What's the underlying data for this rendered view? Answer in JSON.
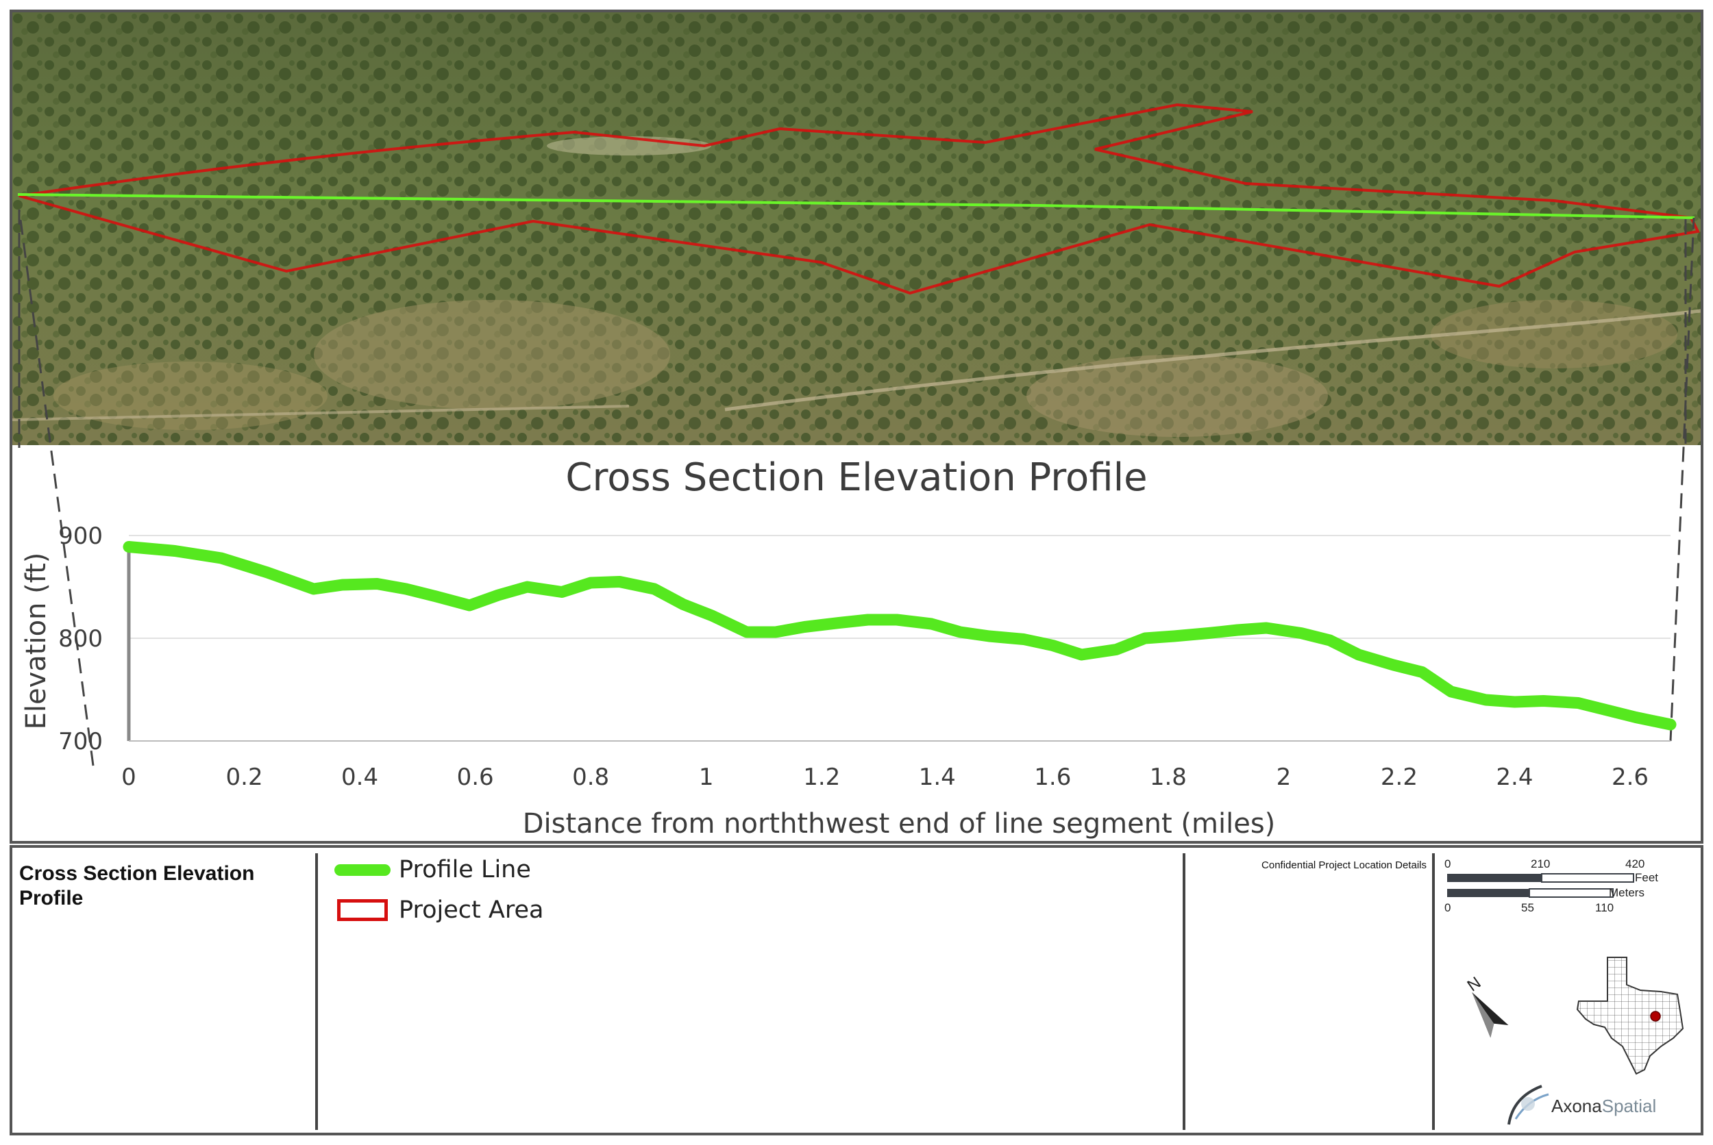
{
  "chart_data": {
    "type": "line",
    "title": "Cross Section Elevation Profile",
    "xlabel": "Distance from norththwest end of line segment (miles)",
    "ylabel": "Elevation (ft)",
    "xlim": [
      0,
      2.67
    ],
    "ylim": [
      700,
      900
    ],
    "xticks": [
      "0",
      "0.2",
      "0.4",
      "0.6",
      "0.8",
      "1",
      "1.2",
      "1.4",
      "1.6",
      "1.8",
      "2",
      "2.2",
      "2.4",
      "2.6"
    ],
    "yticks": [
      "700",
      "800",
      "900"
    ],
    "grid": "horizontal",
    "series": [
      {
        "name": "Profile Line",
        "x": [
          0,
          0.08,
          0.16,
          0.24,
          0.32,
          0.37,
          0.43,
          0.48,
          0.53,
          0.59,
          0.64,
          0.69,
          0.75,
          0.8,
          0.85,
          0.91,
          0.96,
          1.01,
          1.07,
          1.12,
          1.17,
          1.23,
          1.28,
          1.33,
          1.39,
          1.44,
          1.49,
          1.55,
          1.6,
          1.65,
          1.71,
          1.76,
          1.81,
          1.87,
          1.92,
          1.97,
          2.03,
          2.08,
          2.13,
          2.19,
          2.24,
          2.29,
          2.35,
          2.4,
          2.45,
          2.51,
          2.56,
          2.61,
          2.67
        ],
        "y": [
          889,
          885,
          878,
          864,
          848,
          852,
          853,
          848,
          841,
          832,
          842,
          850,
          845,
          854,
          855,
          848,
          833,
          822,
          806,
          806,
          811,
          815,
          818,
          818,
          814,
          806,
          802,
          799,
          793,
          784,
          789,
          800,
          802,
          805,
          808,
          810,
          805,
          798,
          784,
          774,
          767,
          748,
          740,
          738,
          739,
          737,
          730,
          723,
          716
        ]
      }
    ]
  },
  "legend": {
    "panel_title": "Cross Section Elevation Profile",
    "items": [
      {
        "label": "Profile Line",
        "color": "#56e81f",
        "swatch": "line"
      },
      {
        "label": "Project Area",
        "color": "#d60f0f",
        "swatch": "polygon"
      }
    ]
  },
  "info": {
    "confidential_label": "Confidential Project Location Details"
  },
  "scale_bar": {
    "feet_ticks": [
      "0",
      "210",
      "420"
    ],
    "feet_unit": "Feet",
    "meters_ticks": [
      "0",
      "55",
      "110"
    ],
    "meters_unit": "Meters"
  },
  "north_arrow": {
    "label": "N"
  },
  "logo": {
    "text_bold": "Axona",
    "text_light": "Spatial"
  },
  "colors": {
    "profile_line": "#56e81f",
    "project_area": "#d60f0f",
    "locator_marker": "#b00000"
  }
}
